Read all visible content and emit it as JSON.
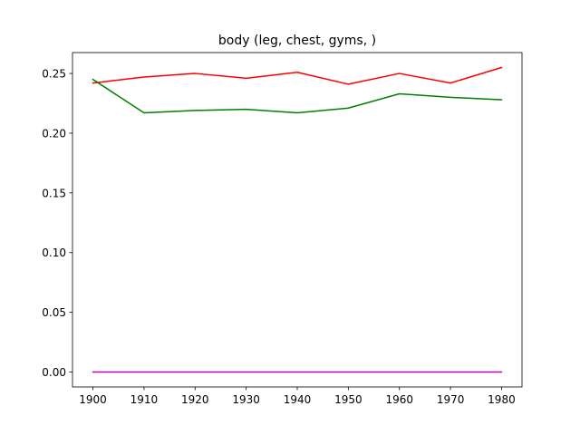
{
  "chart_data": {
    "type": "line",
    "title": "body (leg, chest, gyms, )",
    "xlabel": "",
    "ylabel": "",
    "x": [
      1900,
      1910,
      1920,
      1930,
      1940,
      1950,
      1960,
      1970,
      1980
    ],
    "xlim": [
      1896,
      1984
    ],
    "ylim": [
      -0.0125,
      0.2675
    ],
    "xticks": [
      1900,
      1910,
      1920,
      1930,
      1940,
      1950,
      1960,
      1970,
      1980
    ],
    "yticks": [
      0.0,
      0.05,
      0.1,
      0.15,
      0.2,
      0.25
    ],
    "ytick_labels": [
      "0.00",
      "0.05",
      "0.10",
      "0.15",
      "0.20",
      "0.25"
    ],
    "grid": false,
    "series": [
      {
        "color": "#ff0000",
        "values": [
          0.242,
          0.247,
          0.25,
          0.246,
          0.251,
          0.241,
          0.25,
          0.242,
          0.255
        ]
      },
      {
        "color": "#008000",
        "values": [
          0.245,
          0.217,
          0.219,
          0.22,
          0.217,
          0.221,
          0.233,
          0.23,
          0.228
        ]
      },
      {
        "color": "#bf00bf",
        "values": [
          0.0,
          0.0,
          0.0,
          0.0,
          0.0,
          0.0,
          0.0,
          0.0,
          0.0
        ]
      }
    ]
  }
}
